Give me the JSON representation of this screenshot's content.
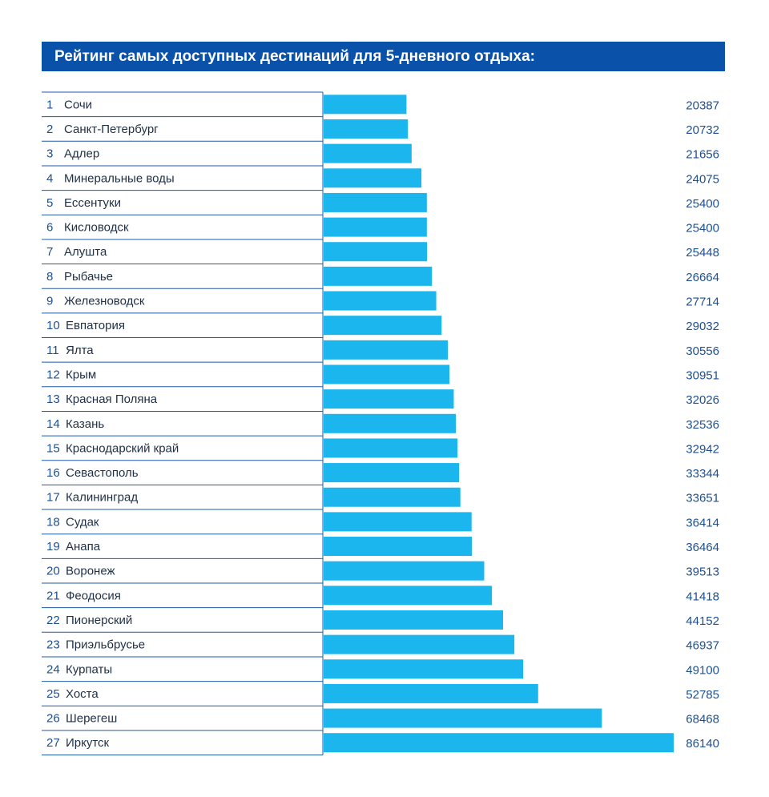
{
  "header": {
    "title": "Рейтинг самых доступных дестинаций для 5-дневного отдыха:"
  },
  "colors": {
    "header_bg": "#0a52a9",
    "bar": "#1bb6ee",
    "rank_text": "#1f4f8e",
    "value_text": "#1f4f8e",
    "row_line": "#1f5aa6"
  },
  "chart_data": {
    "type": "bar",
    "orientation": "horizontal",
    "title": "Рейтинг самых доступных дестинаций для 5-дневного отдыха:",
    "ranks": [
      "1",
      "2",
      "3",
      "4",
      "5",
      "6",
      "7",
      "8",
      "9",
      "10",
      "11",
      "12",
      "13",
      "14",
      "15",
      "16",
      "17",
      "18",
      "19",
      "20",
      "21",
      "22",
      "23",
      "24",
      "25",
      "26",
      "27"
    ],
    "categories": [
      "Сочи",
      "Санкт-Петербург",
      "Адлер",
      "Минеральные воды",
      "Ессентуки",
      "Кисловодск",
      "Алушта",
      "Рыбачье",
      "Железноводск",
      "Евпатория",
      "Ялта",
      "Крым",
      "Красная Поляна",
      "Казань",
      "Краснодарский край",
      "Севастополь",
      "Калининград",
      "Судак",
      "Анапа",
      "Воронеж",
      "Феодосия",
      "Пионерский",
      "Приэльбрусье",
      "Курпаты",
      "Хоста",
      "Шерегеш",
      "Иркутск"
    ],
    "values": [
      20387,
      20732,
      21656,
      24075,
      25400,
      25400,
      25448,
      26664,
      27714,
      29032,
      30556,
      30951,
      32026,
      32536,
      32942,
      33344,
      33651,
      36414,
      36464,
      39513,
      41418,
      44152,
      46937,
      49100,
      52785,
      68468,
      86140
    ],
    "value_labels": [
      "20387",
      "20732",
      "21656",
      "24075",
      "25400",
      "25400",
      "25448",
      "26664",
      "27714",
      "29032",
      "30556",
      "30951",
      "32026",
      "32536",
      "32942",
      "33344",
      "33651",
      "36414",
      "36464",
      "39513",
      "41418",
      "44152",
      "46937",
      "49100",
      "52785",
      "68468",
      "86140"
    ],
    "xlabel": "",
    "ylabel": "",
    "xlim": [
      0,
      86140
    ],
    "grid": false
  }
}
